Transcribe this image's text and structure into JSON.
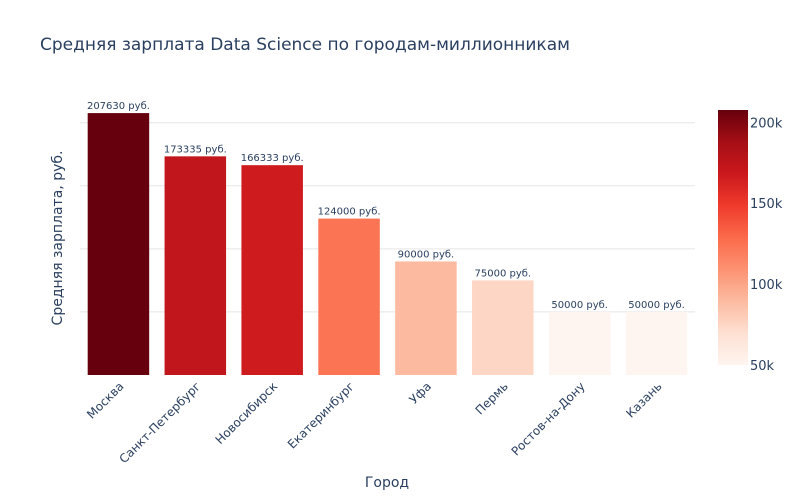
{
  "chart_data": {
    "type": "bar",
    "title": "Средняя зарплата Data Science по городам-миллионникам",
    "xlabel": "Город",
    "ylabel": "Средняя зарплата, руб.",
    "categories": [
      "Москва",
      "Санкт-Петербург",
      "Новосибирск",
      "Екатеринбург",
      "Уфа",
      "Пермь",
      "Ростов-на-Дону",
      "Казань"
    ],
    "values": [
      207630,
      173335,
      166333,
      124000,
      90000,
      75000,
      50000,
      50000
    ],
    "data_labels": [
      "207630 руб.",
      "173335 руб.",
      "166333 руб.",
      "124000 руб.",
      "90000 руб.",
      "75000 руб.",
      "50000 руб.",
      "50000 руб."
    ],
    "ylim": [
      0,
      218000
    ],
    "y_gridlines": [
      50000,
      100000,
      150000,
      200000
    ],
    "y_tick_labels_visible": false,
    "grid": true,
    "colorscale": {
      "name": "Reds",
      "range": [
        50000,
        207630
      ],
      "stops": [
        "#fff5f0",
        "#fee0d2",
        "#fcbba1",
        "#fc9272",
        "#fb6a4a",
        "#ef3b2c",
        "#cb181d",
        "#a50f15",
        "#67000d"
      ],
      "ticks": [
        50000,
        100000,
        150000,
        200000
      ],
      "tick_labels": [
        "50k",
        "100k",
        "150k",
        "200k"
      ]
    }
  }
}
